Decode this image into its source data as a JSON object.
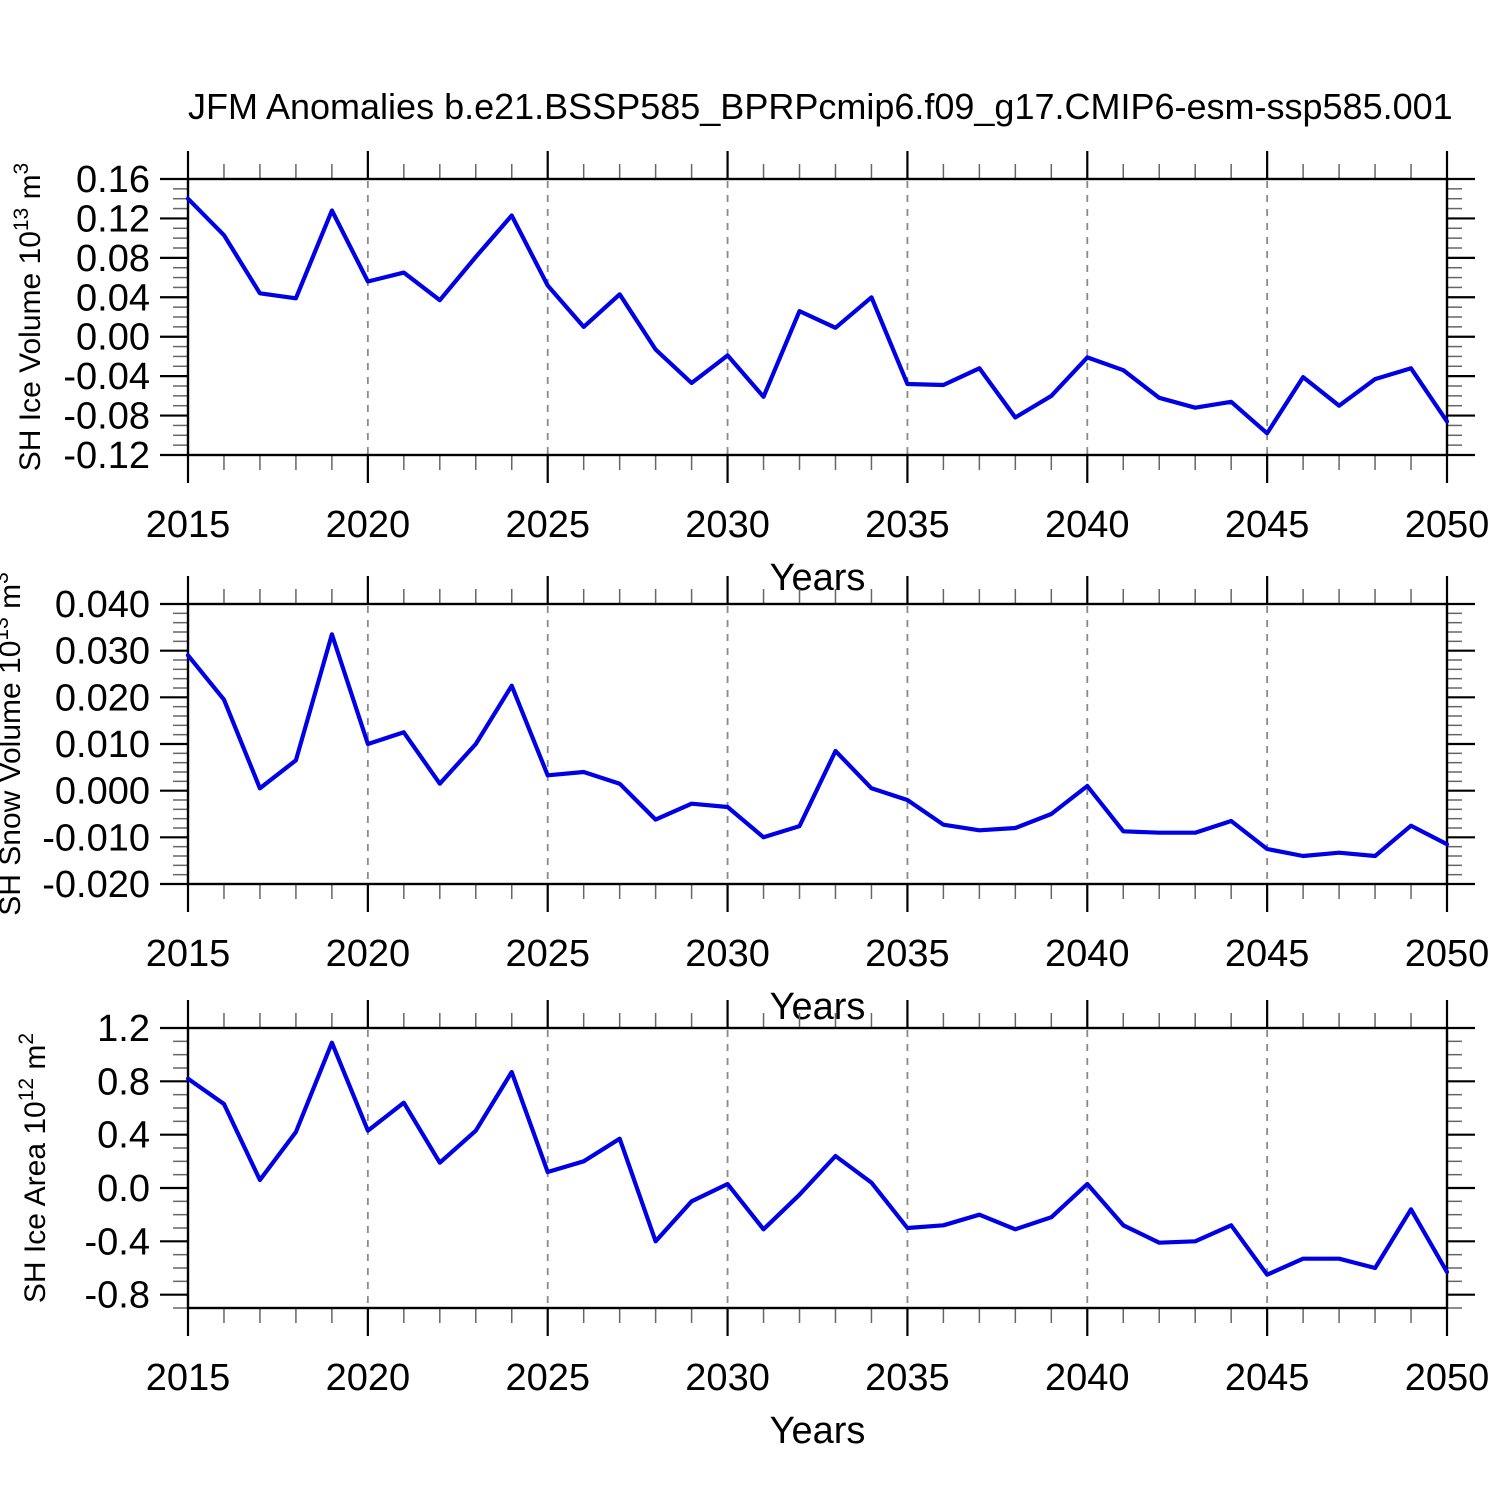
{
  "title": "JFM Anomalies b.e21.BSSP585_BPRPcmip6.f09_g17.CMIP6-esm-ssp585.001",
  "colors": {
    "line": "#0000e6",
    "grid": "#8a8a8a",
    "axis": "#000000",
    "minor_tick": "#666666",
    "background": "#ffffff"
  },
  "x_axis": {
    "label": "Years",
    "min": 2015,
    "max": 2050,
    "major_step": 5,
    "minor_step": 1,
    "tick_labels": [
      "2015",
      "2020",
      "2025",
      "2030",
      "2035",
      "2040",
      "2045",
      "2050"
    ],
    "gridline_years": [
      2020,
      2025,
      2030,
      2035,
      2040,
      2045
    ]
  },
  "years": [
    2015,
    2016,
    2017,
    2018,
    2019,
    2020,
    2021,
    2022,
    2023,
    2024,
    2025,
    2026,
    2027,
    2028,
    2029,
    2030,
    2031,
    2032,
    2033,
    2034,
    2035,
    2036,
    2037,
    2038,
    2039,
    2040,
    2041,
    2042,
    2043,
    2044,
    2045,
    2046,
    2047,
    2048,
    2049,
    2050
  ],
  "chart_data": [
    {
      "id": "sh-ice-volume",
      "type": "line",
      "ylabel": "SH Ice Volume 10^13 m^3",
      "ylabel_parts": [
        {
          "t": "SH Ice Volume 10"
        },
        {
          "t": "13",
          "sup": true
        },
        {
          "t": " m"
        },
        {
          "t": "3",
          "sup": true
        }
      ],
      "ylim": [
        -0.12,
        0.16
      ],
      "y_major_step": 0.04,
      "y_minor_step": 0.01,
      "y_tick_labels": [
        "-0.12",
        "-0.08",
        "-0.04",
        "0.00",
        "0.04",
        "0.08",
        "0.12",
        "0.16"
      ],
      "values": [
        0.14,
        0.103,
        0.044,
        0.039,
        0.128,
        0.056,
        0.065,
        0.037,
        0.081,
        0.123,
        0.052,
        0.01,
        0.043,
        -0.013,
        -0.047,
        -0.019,
        -0.061,
        0.026,
        0.009,
        0.04,
        -0.048,
        -0.049,
        -0.032,
        -0.082,
        -0.06,
        -0.021,
        -0.034,
        -0.062,
        -0.072,
        -0.066,
        -0.098,
        -0.041,
        -0.07,
        -0.043,
        -0.032,
        -0.086
      ]
    },
    {
      "id": "sh-snow-volume",
      "type": "line",
      "ylabel": "SH Snow Volume 10^13 m^3",
      "ylabel_parts": [
        {
          "t": "SH Snow Volume 10"
        },
        {
          "t": "13",
          "sup": true
        },
        {
          "t": " m"
        },
        {
          "t": "3",
          "sup": true
        }
      ],
      "ylim": [
        -0.02,
        0.04
      ],
      "y_major_step": 0.01,
      "y_minor_step": 0.002,
      "y_tick_labels": [
        "-0.020",
        "-0.010",
        "0.000",
        "0.010",
        "0.020",
        "0.030",
        "0.040"
      ],
      "values": [
        0.029,
        0.0195,
        0.0005,
        0.0065,
        0.0335,
        0.01,
        0.0125,
        0.0015,
        0.01,
        0.0225,
        0.0033,
        0.004,
        0.0015,
        -0.0062,
        -0.0028,
        -0.0035,
        -0.01,
        -0.0076,
        0.0085,
        0.0005,
        -0.002,
        -0.0073,
        -0.0085,
        -0.008,
        -0.005,
        0.001,
        -0.0087,
        -0.009,
        -0.009,
        -0.0065,
        -0.0125,
        -0.014,
        -0.0133,
        -0.014,
        -0.0075,
        -0.0115
      ]
    },
    {
      "id": "sh-ice-area",
      "type": "line",
      "ylabel": "SH Ice Area 10^12 m^2",
      "ylabel_parts": [
        {
          "t": "SH Ice Area 10"
        },
        {
          "t": "12",
          "sup": true
        },
        {
          "t": " m"
        },
        {
          "t": "2",
          "sup": true
        }
      ],
      "ylim": [
        -0.9,
        1.2
      ],
      "y_major_step": 0.4,
      "y_minor_step": 0.1,
      "y_tick_labels": [
        "-0.8",
        "-0.4",
        "0.0",
        "0.4",
        "0.8",
        "1.2"
      ],
      "values": [
        0.82,
        0.63,
        0.06,
        0.42,
        1.09,
        0.43,
        0.64,
        0.19,
        0.43,
        0.87,
        0.12,
        0.2,
        0.37,
        -0.4,
        -0.1,
        0.03,
        -0.31,
        -0.05,
        0.24,
        0.04,
        -0.3,
        -0.28,
        -0.2,
        -0.31,
        -0.22,
        0.03,
        -0.28,
        -0.41,
        -0.4,
        -0.28,
        -0.65,
        -0.53,
        -0.53,
        -0.6,
        -0.16,
        -0.63
      ]
    }
  ]
}
